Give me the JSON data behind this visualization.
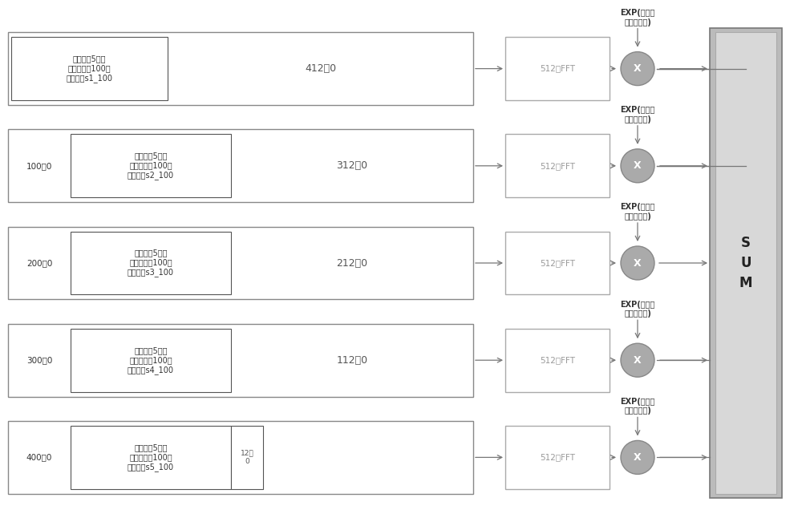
{
  "rows": [
    {
      "has_left_zeros": false,
      "left_label": "",
      "inner_label": "第一跳每5码片\n相加得到的100点\n有效数据s1_100",
      "middle_label": "412个0",
      "fft_label": "512点FFT",
      "exp_label": "EXP(第一跳\n相位补偿值)",
      "last_row_small_box": false
    },
    {
      "has_left_zeros": true,
      "left_label": "100个0",
      "inner_label": "第二跳每5码片\n相加得到的100点\n有效数据s2_100",
      "middle_label": "312个0",
      "fft_label": "512点FFT",
      "exp_label": "EXP(第二跳\n相位补偿值)",
      "last_row_small_box": false
    },
    {
      "has_left_zeros": true,
      "left_label": "200个0",
      "inner_label": "第三跳每5码片\n相加得到的100点\n有效数据s3_100",
      "middle_label": "212个0",
      "fft_label": "512点FFT",
      "exp_label": "EXP(第三跳\n相位补偿值)",
      "last_row_small_box": false
    },
    {
      "has_left_zeros": true,
      "left_label": "300个0",
      "inner_label": "第四跳每5码片\n相加得到的100点\n有效数据s4_100",
      "middle_label": "112个0",
      "fft_label": "512点FFT",
      "exp_label": "EXP(第四跳\n相位补偿值)",
      "last_row_small_box": false
    },
    {
      "has_left_zeros": true,
      "left_label": "400个0",
      "inner_label": "第五跳每5码片\n相加得到的100点\n有效数据s5_100",
      "middle_label": "12个\n0",
      "fft_label": "512点FFT",
      "exp_label": "EXP(第五跳\n相位补偿值)",
      "last_row_small_box": true
    }
  ],
  "sum_label": "S\nU\nM",
  "bg_color": "#ffffff",
  "box_facecolor": "#ffffff",
  "box_edgecolor": "#888888",
  "fft_edgecolor": "#aaaaaa",
  "fft_textcolor": "#999999",
  "sum_outer_fill": "#bbbbbb",
  "sum_inner_fill": "#d8d8d8",
  "circle_fill": "#aaaaaa",
  "circle_edge": "#888888",
  "text_dark": "#333333",
  "text_mid": "#555555",
  "arrow_color": "#777777",
  "lw_outer": 1.0,
  "lw_inner": 0.8,
  "lw_arrow": 0.9
}
